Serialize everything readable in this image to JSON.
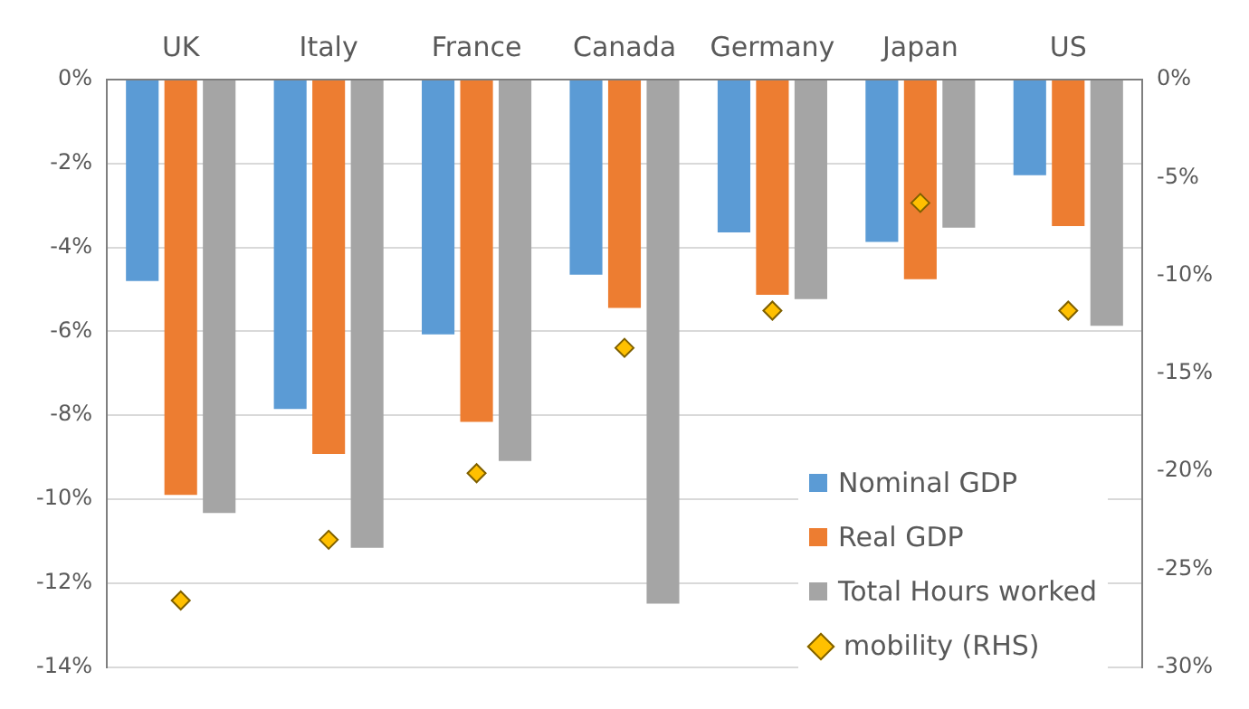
{
  "chart_data": {
    "type": "bar",
    "categories": [
      "UK",
      "Italy",
      "France",
      "Canada",
      "Germany",
      "Japan",
      "US"
    ],
    "series": [
      {
        "name": "Nominal GDP",
        "color": "#5b9bd5",
        "values": [
          -4.8,
          -7.85,
          -6.07,
          -4.65,
          -3.64,
          -3.87,
          -2.28
        ]
      },
      {
        "name": "Real GDP",
        "color": "#ed7d31",
        "values": [
          -9.9,
          -8.92,
          -8.16,
          -5.44,
          -5.13,
          -4.76,
          -3.49
        ]
      },
      {
        "name": "Total Hours worked",
        "color": "#a5a5a5",
        "values": [
          -10.33,
          -11.16,
          -9.09,
          -12.49,
          -5.23,
          -3.53,
          -5.87
        ]
      },
      {
        "name": "mobility (RHS)",
        "type": "scatter",
        "axis": "y2",
        "marker": "diamond",
        "color": "#ffc000",
        "values": [
          -26.6,
          -23.5,
          -20.1,
          -13.7,
          -11.8,
          -6.3,
          -11.8
        ]
      }
    ],
    "ylim": [
      -14,
      0
    ],
    "yticks": [
      {
        "value": -14,
        "label": "-14%"
      },
      {
        "value": -12,
        "label": "-12%"
      },
      {
        "value": -10,
        "label": "-10%"
      },
      {
        "value": -8,
        "label": "-8%"
      },
      {
        "value": -6,
        "label": "-6%"
      },
      {
        "value": -4,
        "label": "-4%"
      },
      {
        "value": -2,
        "label": "-2%"
      },
      {
        "value": 0,
        "label": "0%"
      }
    ],
    "y2lim": [
      -30,
      0
    ],
    "y2ticks": [
      {
        "value": -30,
        "label": "-30%"
      },
      {
        "value": -25,
        "label": "-25%"
      },
      {
        "value": -20,
        "label": "-20%"
      },
      {
        "value": -15,
        "label": "-15%"
      },
      {
        "value": -10,
        "label": "-10%"
      },
      {
        "value": -5,
        "label": "-5%"
      },
      {
        "value": 0,
        "label": "0%"
      }
    ],
    "grid": "y",
    "legend": "bottom right"
  }
}
